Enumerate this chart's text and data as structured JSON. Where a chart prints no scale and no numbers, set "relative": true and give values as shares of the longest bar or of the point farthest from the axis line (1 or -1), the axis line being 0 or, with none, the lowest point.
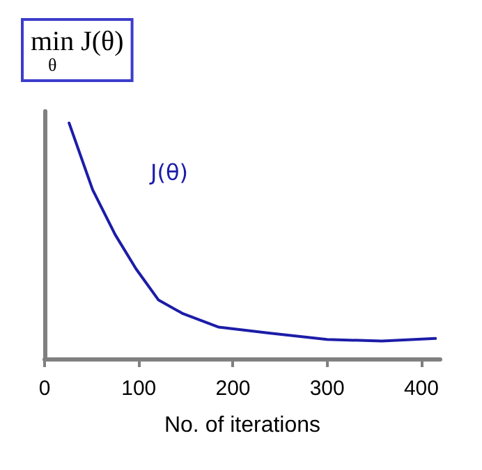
{
  "chart_data": {
    "type": "line",
    "title": "min$_{θ}$ J(θ)",
    "xlabel": "No. of iterations",
    "relative": true,
    "x": [
      26,
      51,
      75,
      97,
      121,
      147,
      185,
      238,
      300,
      358,
      415
    ],
    "series": [
      {
        "name": "J(θ)",
        "color": "#1c1ca8",
        "values": [
          1,
          0.717,
          0.526,
          0.382,
          0.249,
          0.191,
          0.134,
          0.109,
          0.082,
          0.075,
          0.086
        ]
      }
    ],
    "xlim": [
      0,
      420
    ],
    "xticks": [
      0,
      100,
      200,
      300,
      400
    ],
    "grid": false,
    "legend": false,
    "marker": "none",
    "line_style": "solid"
  }
}
